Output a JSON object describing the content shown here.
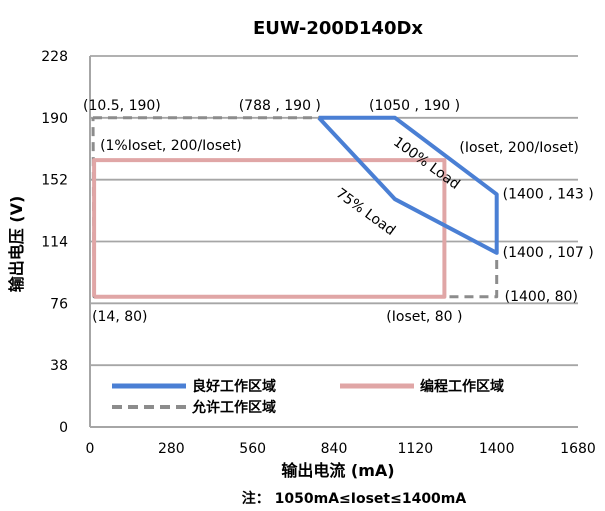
{
  "chart_data": {
    "type": "line",
    "title": "EUW-200D140Dx",
    "xlabel": "输出电流 (mA)",
    "ylabel": "输出电压 (V)",
    "note": "注： 1050mA≤Ioset≤1400mA",
    "xlim": [
      0,
      1680
    ],
    "ylim": [
      0,
      228
    ],
    "xticks": [
      0,
      280,
      560,
      840,
      1120,
      1400,
      1680
    ],
    "yticks": [
      0,
      38,
      76,
      114,
      152,
      190,
      228
    ],
    "grid": "horizontal",
    "colors": {
      "good": "#4a7fd4",
      "program": "#e0a6a6",
      "allowed": "#8c8c8c"
    },
    "series": [
      {
        "name": "良好工作区域",
        "style": "solid",
        "color": "#4a7fd4",
        "points": [
          [
            788,
            190
          ],
          [
            1050,
            190
          ],
          [
            1400,
            143
          ],
          [
            1400,
            107
          ],
          [
            1050,
            140
          ],
          [
            788,
            190
          ]
        ]
      },
      {
        "name": "编程工作区域",
        "style": "solid",
        "color": "#e0a6a6",
        "points": [
          [
            14,
            80
          ],
          [
            14,
            164
          ],
          [
            1220,
            164
          ],
          [
            1220,
            80
          ],
          [
            14,
            80
          ]
        ]
      },
      {
        "name": "允许工作区域",
        "style": "dashed",
        "color": "#8c8c8c",
        "points": [
          [
            10.5,
            190
          ],
          [
            788,
            190
          ],
          [
            1050,
            190
          ],
          [
            1400,
            143
          ],
          [
            1400,
            107
          ],
          [
            1400,
            80
          ],
          [
            14,
            80
          ],
          [
            10.5,
            190
          ]
        ]
      }
    ],
    "annotations": [
      {
        "text": "(10.5, 190)",
        "x": 10.5,
        "y": 190
      },
      {
        "text": "(788 , 190 )",
        "x": 788,
        "y": 190
      },
      {
        "text": "(1050 , 190 )",
        "x": 1050,
        "y": 190
      },
      {
        "text": "(1%Ioset, 200/Ioset)",
        "x": 14,
        "y": 164
      },
      {
        "text": "(Ioset, 200/Ioset)",
        "x": 1220,
        "y": 164
      },
      {
        "text": "100% Load",
        "x": 1150,
        "y": 160
      },
      {
        "text": "75% Load",
        "x": 940,
        "y": 130
      },
      {
        "text": "(1400 , 143 )",
        "x": 1400,
        "y": 143
      },
      {
        "text": "(1400 , 107 )",
        "x": 1400,
        "y": 107
      },
      {
        "text": "(1400, 80)",
        "x": 1400,
        "y": 80
      },
      {
        "text": "(14, 80)",
        "x": 14,
        "y": 80
      },
      {
        "text": "(Ioset, 80 )",
        "x": 1220,
        "y": 80
      }
    ]
  }
}
